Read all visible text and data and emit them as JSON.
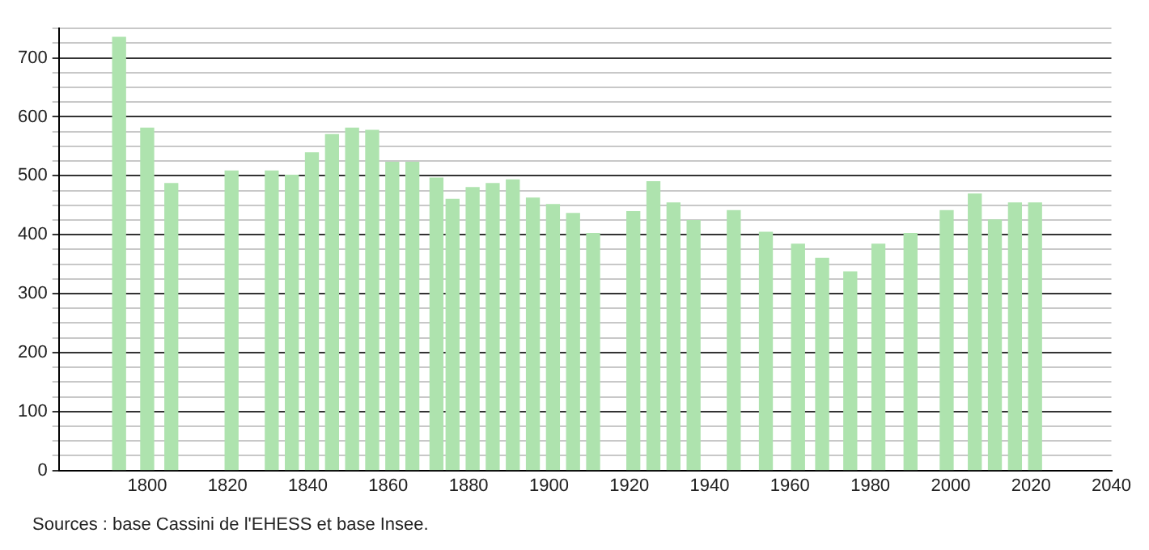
{
  "chart_data": {
    "type": "bar",
    "x": [
      1793,
      1800,
      1806,
      1821,
      1831,
      1836,
      1841,
      1846,
      1851,
      1856,
      1861,
      1866,
      1872,
      1876,
      1881,
      1886,
      1891,
      1896,
      1901,
      1906,
      1911,
      1921,
      1926,
      1931,
      1936,
      1946,
      1954,
      1962,
      1968,
      1975,
      1982,
      1990,
      1999,
      2006,
      2011,
      2016,
      2021
    ],
    "values": [
      735,
      581,
      487,
      508,
      508,
      501,
      539,
      570,
      581,
      577,
      523,
      523,
      496,
      460,
      480,
      487,
      493,
      462,
      451,
      436,
      402,
      439,
      490,
      454,
      424,
      441,
      404,
      384,
      360,
      337,
      384,
      402,
      441,
      469,
      425,
      454,
      454
    ],
    "color": "#aee3ae",
    "xlim": [
      1778,
      2040
    ],
    "xticks": [
      1800,
      1820,
      1840,
      1860,
      1880,
      1900,
      1920,
      1940,
      1960,
      1980,
      2000,
      2020,
      2040
    ],
    "ylim": [
      0,
      750
    ],
    "yticks": [
      0,
      {
        "value": 25,
        "label": null
      },
      {
        "value": 50,
        "label": null
      },
      {
        "value": 75,
        "label": null
      },
      100,
      {
        "value": 125,
        "label": null
      },
      {
        "value": 150,
        "label": null
      },
      {
        "value": 175,
        "label": null
      },
      200,
      {
        "value": 225,
        "label": null
      },
      {
        "value": 250,
        "label": null
      },
      {
        "value": 275,
        "label": null
      },
      300,
      {
        "value": 325,
        "label": null
      },
      {
        "value": 350,
        "label": null
      },
      {
        "value": 375,
        "label": null
      },
      400,
      {
        "value": 425,
        "label": null
      },
      {
        "value": 450,
        "label": null
      },
      {
        "value": 475,
        "label": null
      },
      500,
      {
        "value": 525,
        "label": null
      },
      {
        "value": 550,
        "label": null
      },
      {
        "value": 575,
        "label": null
      },
      600,
      {
        "value": 625,
        "label": null
      },
      {
        "value": 650,
        "label": null
      },
      {
        "value": 675,
        "label": null
      },
      700,
      {
        "value": 725,
        "label": null
      },
      {
        "value": 750,
        "label": null
      }
    ],
    "grid": "y",
    "annotations": [
      "Sources : base Cassini de l'EHESS et base Insee."
    ]
  }
}
